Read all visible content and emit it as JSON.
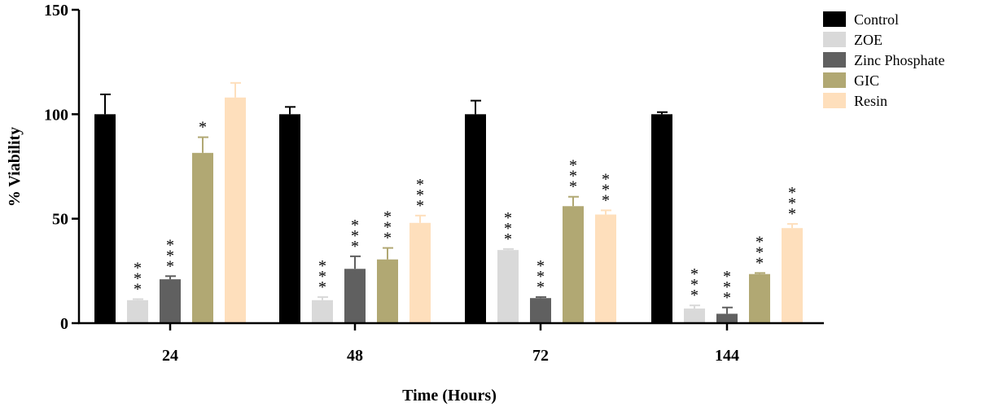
{
  "chart_data": {
    "type": "bar",
    "title": "",
    "xlabel": "Time (Hours)",
    "ylabel": "% Viability",
    "ylim": [
      0,
      150
    ],
    "yticks": [
      "0",
      "50",
      "100",
      "150"
    ],
    "categories": [
      "24",
      "48",
      "72",
      "144"
    ],
    "legend_position": "top-right",
    "series": [
      {
        "name": "Control",
        "color": "#000000",
        "values": [
          100,
          100,
          100,
          100
        ],
        "errors": [
          9.5,
          3.5,
          6.5,
          1
        ],
        "significance": [
          "",
          "",
          "",
          ""
        ]
      },
      {
        "name": "ZOE",
        "color": "#d9d9d9",
        "values": [
          11,
          11,
          35,
          7
        ],
        "errors": [
          0.5,
          1.5,
          0.5,
          1.5
        ],
        "significance": [
          "***",
          "***",
          "***",
          "***"
        ]
      },
      {
        "name": "Zinc Phosphate",
        "color": "#606060",
        "values": [
          21,
          26,
          12,
          4.5
        ],
        "errors": [
          1.5,
          6,
          0.5,
          3
        ],
        "significance": [
          "***",
          "***",
          "***",
          "***"
        ]
      },
      {
        "name": "GIC",
        "color": "#b1a873",
        "values": [
          81.5,
          30.5,
          56,
          23.5
        ],
        "errors": [
          7.5,
          5.5,
          4.5,
          0.5
        ],
        "significance": [
          "*",
          "***",
          "***",
          "***"
        ]
      },
      {
        "name": "Resin",
        "color": "#fedfbc",
        "values": [
          108,
          48,
          52,
          45.5
        ],
        "errors": [
          7,
          3.5,
          2,
          2
        ],
        "significance": [
          "",
          "***",
          "***",
          "***"
        ]
      }
    ]
  }
}
